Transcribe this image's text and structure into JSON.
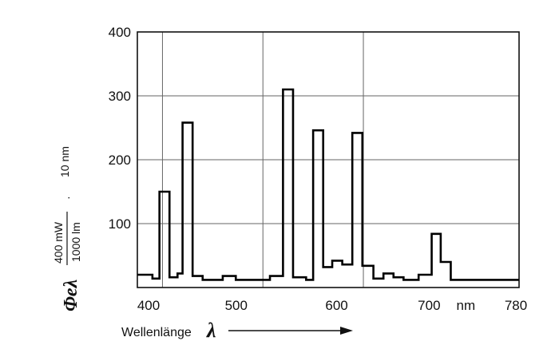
{
  "chart_data": {
    "type": "line",
    "title": "",
    "xlabel": "Wellenlänge",
    "xlabel_symbol": "λ",
    "ylabel": {
      "quantity": "Φeλ",
      "fraction_numerator": "400 mW",
      "fraction_denominator": "1000 lm",
      "dot": "·",
      "per": "10 nm"
    },
    "x_ticks": [
      "400",
      "500",
      "600",
      "700",
      "nm",
      "780"
    ],
    "y_ticks": [
      "100",
      "200",
      "300",
      "400"
    ],
    "xlim": [
      400,
      780
    ],
    "ylim": [
      0,
      400
    ],
    "grid": true,
    "step_profile": [
      [
        400,
        20
      ],
      [
        415,
        14
      ],
      [
        422,
        150
      ],
      [
        432,
        16
      ],
      [
        440,
        22
      ],
      [
        445,
        258
      ],
      [
        455,
        18
      ],
      [
        465,
        12
      ],
      [
        485,
        18
      ],
      [
        498,
        12
      ],
      [
        532,
        18
      ],
      [
        545,
        310
      ],
      [
        555,
        16
      ],
      [
        568,
        12
      ],
      [
        575,
        246
      ],
      [
        585,
        32
      ],
      [
        594,
        42
      ],
      [
        604,
        36
      ],
      [
        614,
        242
      ],
      [
        624,
        34
      ],
      [
        635,
        14
      ],
      [
        645,
        22
      ],
      [
        655,
        16
      ],
      [
        665,
        12
      ],
      [
        680,
        20
      ],
      [
        693,
        84
      ],
      [
        702,
        40
      ],
      [
        712,
        12
      ],
      [
        780,
        12
      ]
    ]
  }
}
